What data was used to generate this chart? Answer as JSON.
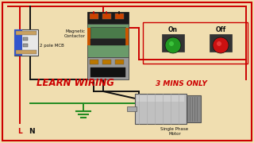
{
  "bg_color": "#f0deb0",
  "border_color": "#cc0000",
  "title1": "LEARN WIRING",
  "title2": "3 MINS ONLY",
  "title1_color": "#cc0000",
  "title2_color": "#cc0000",
  "label_mcb": "2 pole MCB",
  "label_contactor": "Magnetic\nContactor",
  "label_motor": "Single Phase\nMotor",
  "label_on": "On",
  "label_off": "Off",
  "label_L": "L",
  "label_N": "N",
  "wire_red": "#cc0000",
  "wire_black": "#111111",
  "wire_green": "#228B22"
}
